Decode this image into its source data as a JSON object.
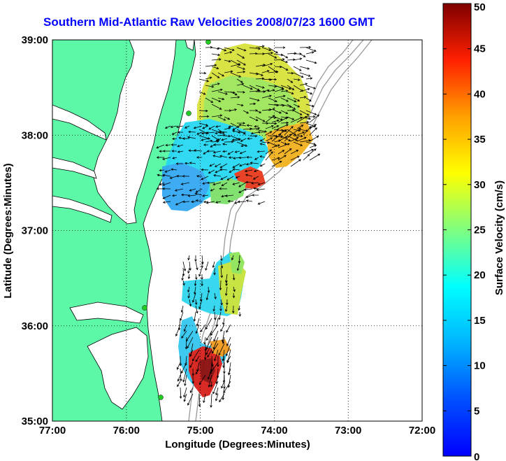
{
  "title": "Southern Mid-Atlantic Raw Velocities 2008/07/23 1600 GMT",
  "map": {
    "xlabel": "Longitude (Degrees:Minutes)",
    "ylabel": "Latitude (Degrees:Minutes)",
    "lon_range": [
      -77,
      -72
    ],
    "lat_range": [
      35,
      39
    ],
    "x_ticks": [
      {
        "value": -77,
        "label": "77:00"
      },
      {
        "value": -76,
        "label": "76:00"
      },
      {
        "value": -75,
        "label": "75:00"
      },
      {
        "value": -74,
        "label": "74:00"
      },
      {
        "value": -73,
        "label": "73:00"
      },
      {
        "value": -72,
        "label": "72:00"
      }
    ],
    "y_ticks": [
      {
        "value": 39,
        "label": "39:00"
      },
      {
        "value": 38,
        "label": "38:00"
      },
      {
        "value": 37,
        "label": "37:00"
      },
      {
        "value": 36,
        "label": "36:00"
      },
      {
        "value": 35,
        "label": "35:00"
      }
    ],
    "grid": "dotted",
    "land_color": "#5df7a8",
    "coast_color": "#000000",
    "bathymetry_color": "#999999",
    "station_color": "#22cc22"
  },
  "colorbar": {
    "label": "Surface Velocity (cm/s)",
    "min": 0,
    "max": 50,
    "ticks": [
      "0",
      "5",
      "10",
      "15",
      "20",
      "25",
      "30",
      "35",
      "40",
      "45",
      "50"
    ],
    "colormap": "jet"
  }
}
